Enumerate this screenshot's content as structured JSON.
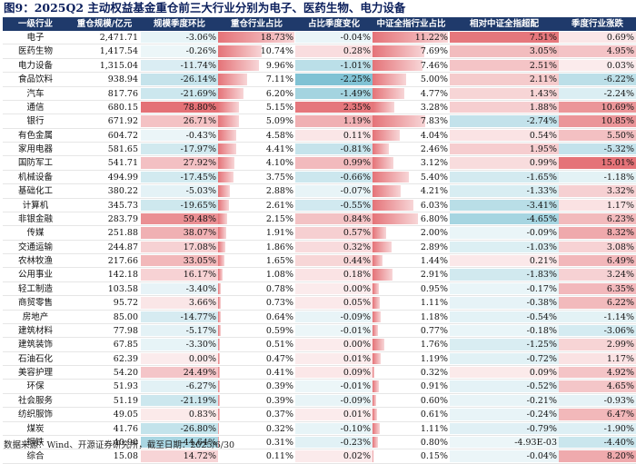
{
  "title": "图9：2025Q2 主动权益基金重仓前三大行业分别为电子、医药生物、电力设备",
  "footer": "数据来源：Wind、开源证券研究所，截至日期：2025/6/30",
  "colors": {
    "header_bg": "#1f3a6b",
    "pos_red": "#e05a60",
    "neg_blue": "#5fb3c9"
  },
  "columns": [
    "一级行业",
    "重仓规模/亿元",
    "规模季度环比",
    "重仓行业占比",
    "占比季度变化",
    "中证全指行业占比",
    "相对中证全指超配",
    "季度行业涨跌"
  ],
  "rows": [
    {
      "name": "电子",
      "scale": "2,471.71",
      "qoq": "-3.06%",
      "share": "18.73%",
      "share_chg": "-0.04%",
      "csi": "11.22%",
      "over": "7.51%",
      "ret": "0.69%",
      "v": [
        -3.06,
        18.73,
        -0.04,
        11.22,
        7.51,
        0.69
      ]
    },
    {
      "name": "医药生物",
      "scale": "1,417.54",
      "qoq": "-0.26%",
      "share": "10.74%",
      "share_chg": "0.28%",
      "csi": "7.69%",
      "over": "3.05%",
      "ret": "4.95%",
      "v": [
        -0.26,
        10.74,
        0.28,
        7.69,
        3.05,
        4.95
      ]
    },
    {
      "name": "电力设备",
      "scale": "1,315.04",
      "qoq": "-11.74%",
      "share": "9.96%",
      "share_chg": "-1.01%",
      "csi": "7.46%",
      "over": "2.51%",
      "ret": "0.03%",
      "v": [
        -11.74,
        9.96,
        -1.01,
        7.46,
        2.51,
        0.03
      ]
    },
    {
      "name": "食品饮料",
      "scale": "938.94",
      "qoq": "-26.14%",
      "share": "7.11%",
      "share_chg": "-2.25%",
      "csi": "5.00%",
      "over": "2.11%",
      "ret": "-6.22%",
      "v": [
        -26.14,
        7.11,
        -2.25,
        5.0,
        2.11,
        -6.22
      ]
    },
    {
      "name": "汽车",
      "scale": "817.76",
      "qoq": "-21.69%",
      "share": "6.20%",
      "share_chg": "-1.49%",
      "csi": "4.77%",
      "over": "1.43%",
      "ret": "-2.24%",
      "v": [
        -21.69,
        6.2,
        -1.49,
        4.77,
        1.43,
        -2.24
      ]
    },
    {
      "name": "通信",
      "scale": "680.15",
      "qoq": "78.80%",
      "share": "5.15%",
      "share_chg": "2.35%",
      "csi": "3.28%",
      "over": "1.88%",
      "ret": "10.69%",
      "v": [
        78.8,
        5.15,
        2.35,
        3.28,
        1.88,
        10.69
      ]
    },
    {
      "name": "银行",
      "scale": "671.92",
      "qoq": "26.71%",
      "share": "5.09%",
      "share_chg": "1.19%",
      "csi": "7.83%",
      "over": "-2.74%",
      "ret": "10.85%",
      "v": [
        26.71,
        5.09,
        1.19,
        7.83,
        -2.74,
        10.85
      ]
    },
    {
      "name": "有色金属",
      "scale": "604.72",
      "qoq": "-0.43%",
      "share": "4.58%",
      "share_chg": "0.11%",
      "csi": "4.04%",
      "over": "0.54%",
      "ret": "5.50%",
      "v": [
        -0.43,
        4.58,
        0.11,
        4.04,
        0.54,
        5.5
      ]
    },
    {
      "name": "家用电器",
      "scale": "581.65",
      "qoq": "-17.97%",
      "share": "4.41%",
      "share_chg": "-0.81%",
      "csi": "2.46%",
      "over": "1.95%",
      "ret": "-5.32%",
      "v": [
        -17.97,
        4.41,
        -0.81,
        2.46,
        1.95,
        -5.32
      ]
    },
    {
      "name": "国防军工",
      "scale": "541.71",
      "qoq": "27.92%",
      "share": "4.10%",
      "share_chg": "0.99%",
      "csi": "3.12%",
      "over": "0.99%",
      "ret": "15.01%",
      "v": [
        27.92,
        4.1,
        0.99,
        3.12,
        0.99,
        15.01
      ]
    },
    {
      "name": "机械设备",
      "scale": "494.99",
      "qoq": "-17.45%",
      "share": "3.75%",
      "share_chg": "-0.66%",
      "csi": "5.40%",
      "over": "-1.65%",
      "ret": "-1.18%",
      "v": [
        -17.45,
        3.75,
        -0.66,
        5.4,
        -1.65,
        -1.18
      ]
    },
    {
      "name": "基础化工",
      "scale": "380.22",
      "qoq": "-5.03%",
      "share": "2.88%",
      "share_chg": "-0.07%",
      "csi": "4.21%",
      "over": "-1.33%",
      "ret": "3.32%",
      "v": [
        -5.03,
        2.88,
        -0.07,
        4.21,
        -1.33,
        3.32
      ]
    },
    {
      "name": "计算机",
      "scale": "345.73",
      "qoq": "-19.65%",
      "share": "2.61%",
      "share_chg": "-0.55%",
      "csi": "6.03%",
      "over": "-3.41%",
      "ret": "1.17%",
      "v": [
        -19.65,
        2.61,
        -0.55,
        6.03,
        -3.41,
        1.17
      ]
    },
    {
      "name": "非银金融",
      "scale": "283.79",
      "qoq": "59.48%",
      "share": "2.15%",
      "share_chg": "0.84%",
      "csi": "6.80%",
      "over": "-4.65%",
      "ret": "6.23%",
      "v": [
        59.48,
        2.15,
        0.84,
        6.8,
        -4.65,
        6.23
      ]
    },
    {
      "name": "传媒",
      "scale": "251.88",
      "qoq": "38.07%",
      "share": "1.91%",
      "share_chg": "0.57%",
      "csi": "2.00%",
      "over": "-0.09%",
      "ret": "8.32%",
      "v": [
        38.07,
        1.91,
        0.57,
        2.0,
        -0.09,
        8.32
      ]
    },
    {
      "name": "交通运输",
      "scale": "244.87",
      "qoq": "17.08%",
      "share": "1.86%",
      "share_chg": "0.32%",
      "csi": "2.89%",
      "over": "-1.03%",
      "ret": "3.08%",
      "v": [
        17.08,
        1.86,
        0.32,
        2.89,
        -1.03,
        3.08
      ]
    },
    {
      "name": "农林牧渔",
      "scale": "217.66",
      "qoq": "33.05%",
      "share": "1.65%",
      "share_chg": "0.44%",
      "csi": "1.44%",
      "over": "0.21%",
      "ret": "6.49%",
      "v": [
        33.05,
        1.65,
        0.44,
        1.44,
        0.21,
        6.49
      ]
    },
    {
      "name": "公用事业",
      "scale": "142.18",
      "qoq": "16.17%",
      "share": "1.08%",
      "share_chg": "0.18%",
      "csi": "2.91%",
      "over": "-1.83%",
      "ret": "3.24%",
      "v": [
        16.17,
        1.08,
        0.18,
        2.91,
        -1.83,
        3.24
      ]
    },
    {
      "name": "轻工制造",
      "scale": "103.58",
      "qoq": "-3.40%",
      "share": "0.78%",
      "share_chg": "0.00%",
      "csi": "0.95%",
      "over": "-0.17%",
      "ret": "6.35%",
      "v": [
        -3.4,
        0.78,
        0.0,
        0.95,
        -0.17,
        6.35
      ]
    },
    {
      "name": "商贸零售",
      "scale": "95.72",
      "qoq": "3.66%",
      "share": "0.73%",
      "share_chg": "0.05%",
      "csi": "1.11%",
      "over": "-0.38%",
      "ret": "6.22%",
      "v": [
        3.66,
        0.73,
        0.05,
        1.11,
        -0.38,
        6.22
      ]
    },
    {
      "name": "房地产",
      "scale": "85.00",
      "qoq": "-14.77%",
      "share": "0.64%",
      "share_chg": "-0.09%",
      "csi": "1.18%",
      "over": "-0.54%",
      "ret": "-1.14%",
      "v": [
        -14.77,
        0.64,
        -0.09,
        1.18,
        -0.54,
        -1.14
      ]
    },
    {
      "name": "建筑材料",
      "scale": "77.98",
      "qoq": "-5.17%",
      "share": "0.59%",
      "share_chg": "-0.01%",
      "csi": "0.77%",
      "over": "-0.18%",
      "ret": "-3.06%",
      "v": [
        -5.17,
        0.59,
        -0.01,
        0.77,
        -0.18,
        -3.06
      ]
    },
    {
      "name": "建筑装饰",
      "scale": "67.85",
      "qoq": "-3.30%",
      "share": "0.51%",
      "share_chg": "0.00%",
      "csi": "1.76%",
      "over": "-1.25%",
      "ret": "2.99%",
      "v": [
        -3.3,
        0.51,
        0.0,
        1.76,
        -1.25,
        2.99
      ]
    },
    {
      "name": "石油石化",
      "scale": "62.39",
      "qoq": "0.00%",
      "share": "0.47%",
      "share_chg": "0.01%",
      "csi": "1.19%",
      "over": "-0.72%",
      "ret": "1.17%",
      "v": [
        0.0,
        0.47,
        0.01,
        1.19,
        -0.72,
        1.17
      ]
    },
    {
      "name": "美容护理",
      "scale": "54.20",
      "qoq": "24.49%",
      "share": "0.41%",
      "share_chg": "0.09%",
      "csi": "0.32%",
      "over": "0.09%",
      "ret": "4.92%",
      "v": [
        24.49,
        0.41,
        0.09,
        0.32,
        0.09,
        4.92
      ]
    },
    {
      "name": "环保",
      "scale": "51.93",
      "qoq": "-6.27%",
      "share": "0.39%",
      "share_chg": "-0.01%",
      "csi": "0.91%",
      "over": "-0.52%",
      "ret": "4.65%",
      "v": [
        -6.27,
        0.39,
        -0.01,
        0.91,
        -0.52,
        4.65
      ]
    },
    {
      "name": "社会服务",
      "scale": "51.19",
      "qoq": "-21.19%",
      "share": "0.39%",
      "share_chg": "-0.09%",
      "csi": "0.60%",
      "over": "-0.21%",
      "ret": "-0.93%",
      "v": [
        -21.19,
        0.39,
        -0.09,
        0.6,
        -0.21,
        -0.93
      ]
    },
    {
      "name": "纺织服饰",
      "scale": "49.05",
      "qoq": "0.83%",
      "share": "0.37%",
      "share_chg": "0.01%",
      "csi": "0.61%",
      "over": "-0.24%",
      "ret": "6.47%",
      "v": [
        0.83,
        0.37,
        0.01,
        0.61,
        -0.24,
        6.47
      ]
    },
    {
      "name": "煤炭",
      "scale": "41.76",
      "qoq": "-26.80%",
      "share": "0.32%",
      "share_chg": "-0.10%",
      "csi": "1.11%",
      "over": "-0.79%",
      "ret": "-1.90%",
      "v": [
        -26.8,
        0.32,
        -0.1,
        1.11,
        -0.79,
        -1.9
      ]
    },
    {
      "name": "钢铁",
      "scale": "40.90",
      "qoq": "-44.64%",
      "share": "0.31%",
      "share_chg": "-0.23%",
      "csi": "0.80%",
      "over": "-4.93E-03",
      "ret": "-4.40%",
      "v": [
        -44.64,
        0.31,
        -0.23,
        0.8,
        -0.00493,
        -4.4
      ]
    },
    {
      "name": "综合",
      "scale": "15.08",
      "qoq": "14.72%",
      "share": "0.11%",
      "share_chg": "0.02%",
      "csi": "0.15%",
      "over": "-0.04%",
      "ret": "8.20%",
      "v": [
        14.72,
        0.11,
        0.02,
        0.15,
        -0.04,
        8.2
      ]
    }
  ]
}
